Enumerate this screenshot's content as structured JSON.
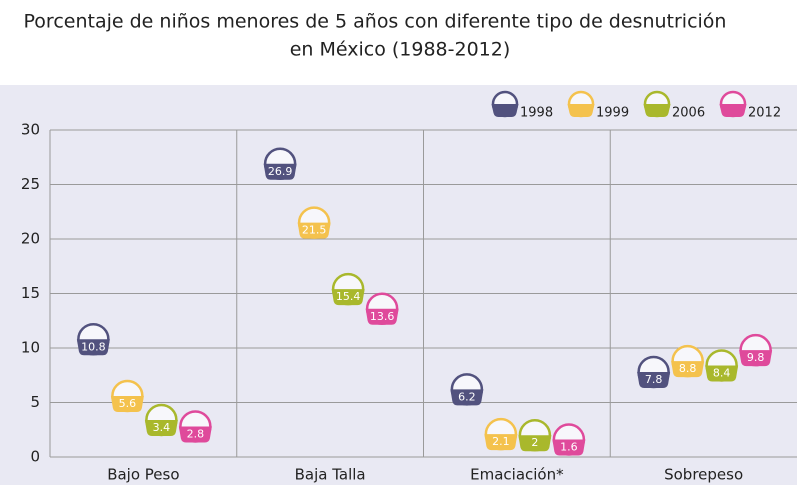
{
  "chart_data": {
    "type": "dot",
    "title": [
      "Porcentaje de niños menores de 5 años con diferente tipo de desnutrición",
      "en México (1988-2012)"
    ],
    "categories": [
      "Bajo Peso",
      "Baja Talla",
      "Emaciación*",
      "Sobrepeso"
    ],
    "series": [
      {
        "name": "1998",
        "color": "#52527e",
        "values": [
          10.8,
          26.9,
          6.2,
          7.8
        ]
      },
      {
        "name": "1999",
        "color": "#f4c24d",
        "values": [
          5.6,
          21.5,
          2.1,
          8.8
        ]
      },
      {
        "name": "2006",
        "color": "#a9b82c",
        "values": [
          3.4,
          15.4,
          2,
          8.4
        ]
      },
      {
        "name": "2012",
        "color": "#df4a9b",
        "values": [
          2.8,
          13.6,
          1.6,
          9.8
        ]
      }
    ],
    "ylim": [
      0,
      30
    ],
    "yticks": [
      0,
      5,
      10,
      15,
      20,
      25,
      30
    ],
    "grid": true,
    "legend": "top-right"
  }
}
